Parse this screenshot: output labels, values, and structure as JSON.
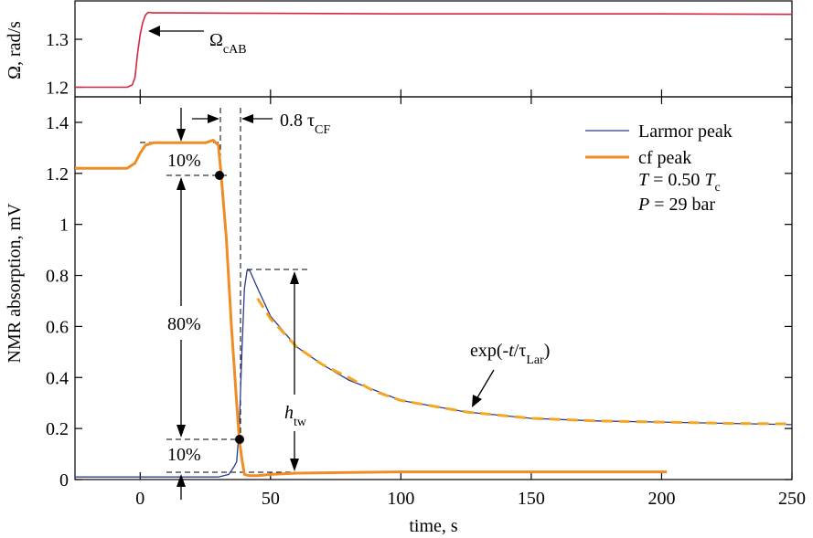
{
  "chart_data": [
    {
      "type": "line",
      "ylabel": "Ω, rad/s",
      "xlim": [
        -25,
        250
      ],
      "ylim": [
        1.18,
        1.38
      ],
      "yticks": [
        1.2,
        1.3
      ],
      "ytick_labels": [
        "1.2",
        "1.3"
      ],
      "series": [
        {
          "color": "#d1283d",
          "x": [
            -25,
            -5,
            -3,
            -2,
            -1,
            0,
            1,
            2,
            3,
            5,
            10,
            50,
            100,
            150,
            200,
            250
          ],
          "y": [
            1.2,
            1.2,
            1.205,
            1.22,
            1.27,
            1.31,
            1.335,
            1.35,
            1.356,
            1.355,
            1.355,
            1.354,
            1.353,
            1.353,
            1.353,
            1.352
          ]
        }
      ],
      "annotations": [
        {
          "base": "Ω",
          "sub": "cAB"
        }
      ]
    },
    {
      "type": "line",
      "xlabel": "time, s",
      "ylabel": "NMR absorption, mV",
      "xlim": [
        -25,
        250
      ],
      "ylim": [
        0,
        1.5
      ],
      "xticks": [
        0,
        50,
        100,
        150,
        200,
        250
      ],
      "xtick_labels": [
        "0",
        "50",
        "100",
        "150",
        "200",
        "250"
      ],
      "yticks": [
        0,
        0.2,
        0.4,
        0.6,
        0.8,
        1,
        1.2,
        1.4
      ],
      "ytick_labels": [
        "0",
        "0.2",
        "0.4",
        "0.6",
        "0.8",
        "1",
        "1.2",
        "1.4"
      ],
      "grid": false,
      "legend_position": "top-right",
      "series": [
        {
          "name": "Larmor peak",
          "color": "#2b3b8f",
          "x": [
            -25,
            0,
            30,
            34,
            36,
            37,
            38,
            39,
            40,
            41,
            42,
            45,
            50,
            60,
            70,
            80,
            100,
            125,
            150,
            175,
            200,
            225,
            250
          ],
          "y": [
            0.01,
            0.01,
            0.01,
            0.02,
            0.05,
            0.07,
            0.2,
            0.5,
            0.75,
            0.82,
            0.82,
            0.75,
            0.64,
            0.52,
            0.45,
            0.39,
            0.31,
            0.265,
            0.24,
            0.23,
            0.225,
            0.22,
            0.215
          ]
        },
        {
          "name": "cf peak",
          "color": "#f08c25",
          "x": [
            -25,
            -5,
            -2,
            0,
            2,
            5,
            10,
            20,
            25,
            28,
            30,
            31,
            33,
            35,
            37,
            38,
            39,
            40,
            42,
            45,
            50,
            60,
            80,
            100,
            150,
            200,
            202
          ],
          "y": [
            1.22,
            1.22,
            1.24,
            1.28,
            1.31,
            1.32,
            1.32,
            1.32,
            1.32,
            1.33,
            1.31,
            1.2,
            0.95,
            0.6,
            0.3,
            0.16,
            0.08,
            0.02,
            0.015,
            0.015,
            0.02,
            0.025,
            0.028,
            0.03,
            0.03,
            0.03,
            0.03
          ]
        },
        {
          "color": "#f4a623",
          "dashed": true,
          "x": [
            45,
            50,
            60,
            70,
            80,
            90,
            100,
            125,
            150,
            175,
            200,
            225,
            250
          ],
          "y": [
            0.71,
            0.63,
            0.52,
            0.45,
            0.4,
            0.345,
            0.31,
            0.265,
            0.24,
            0.23,
            0.225,
            0.22,
            0.218
          ]
        }
      ],
      "legend_notes": [
        {
          "italic_base": "T",
          "text": " = 0.50 ",
          "italic_sym": "T",
          "sub": "c"
        },
        {
          "italic_base": "P",
          "text": " = 29 bar"
        }
      ],
      "annotations": {
        "tau_cf": {
          "prefix": "0.8 τ",
          "sub": "CF"
        },
        "pct_top": "10%",
        "pct_mid": "80%",
        "pct_bottom": "10%",
        "h_tw": {
          "base": "h",
          "sub": "tw"
        },
        "exp_label": {
          "prefix": "exp(-",
          "italic": "t",
          "slash": "/τ",
          "sub": "Lar",
          "suffix": ")"
        }
      }
    }
  ]
}
